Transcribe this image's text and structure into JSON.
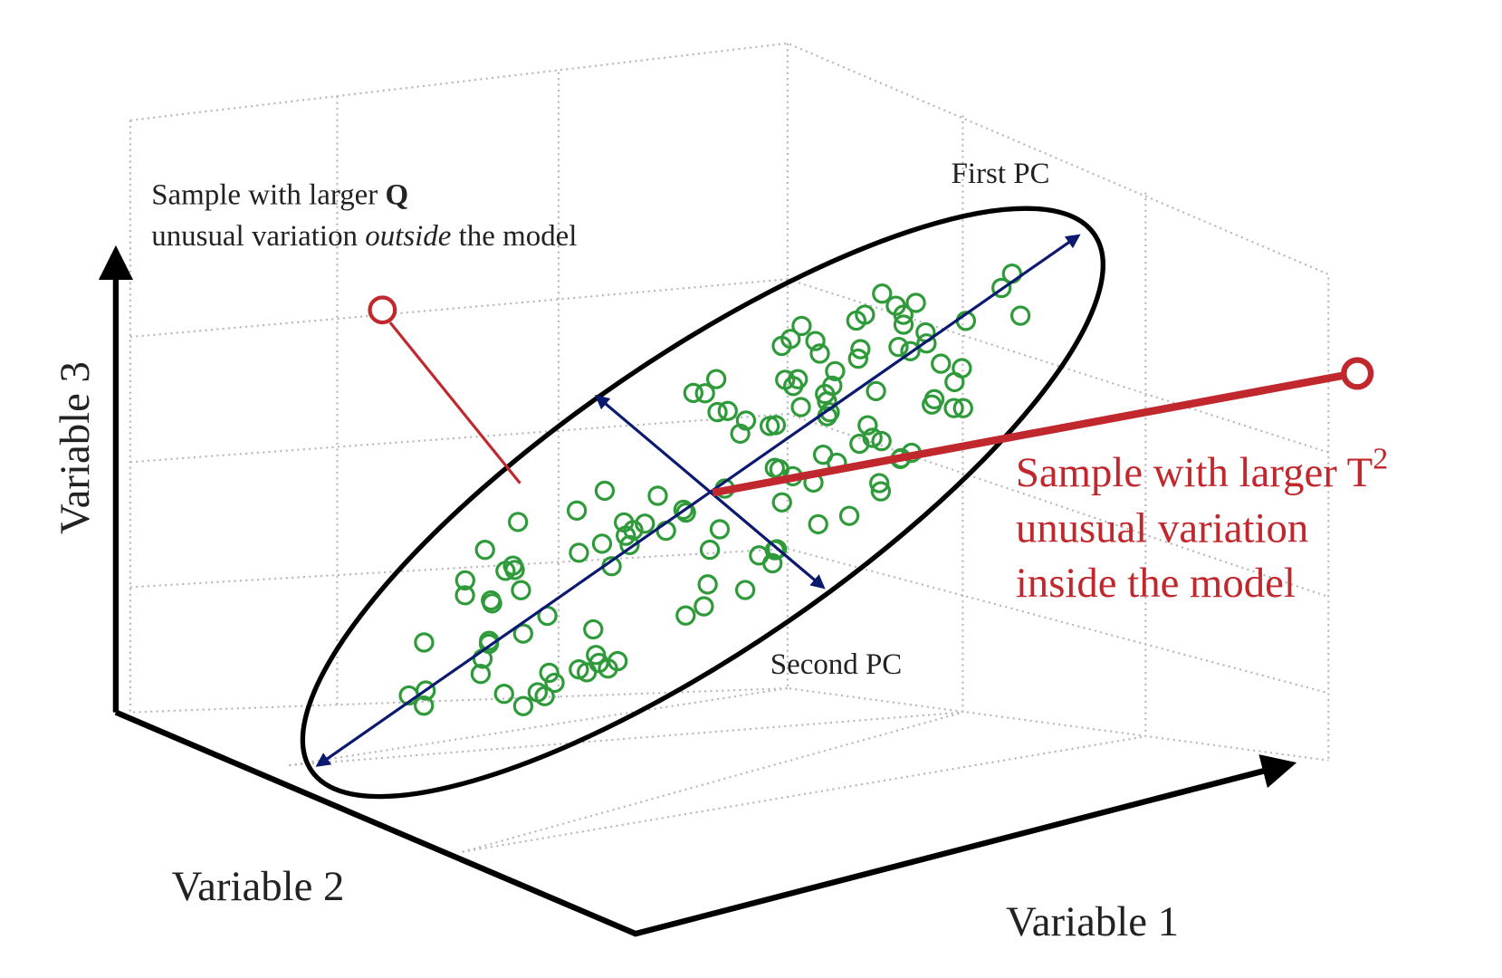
{
  "labels": {
    "q_sample": {
      "line1": {
        "text": "Sample with larger ",
        "bold": "Q"
      },
      "line2": {
        "text": "unusual variation ",
        "italic": "outside",
        "rest": " the model"
      }
    },
    "first_pc": "First PC",
    "second_pc": "Second PC",
    "t2_sample": {
      "line1": {
        "text": "Sample with larger T",
        "sup": "2"
      },
      "line2": "unusual variation",
      "line3": "inside the model"
    },
    "axes": {
      "x": "Variable 1",
      "y": "Variable 2",
      "z": "Variable 3"
    }
  }
}
